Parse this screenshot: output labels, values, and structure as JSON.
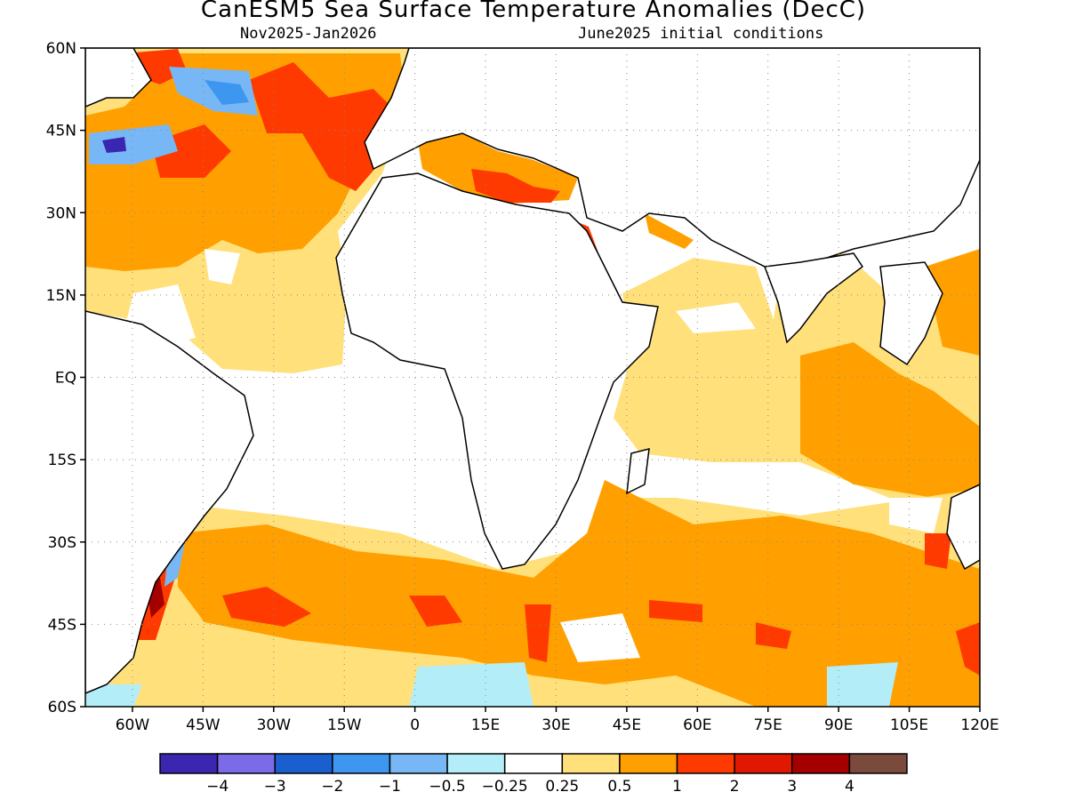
{
  "title": "CanESM5 Sea Surface Temperature Anomalies (DecC)",
  "subtitle_left": "Nov2025-Jan2026",
  "subtitle_right": "June2025 initial conditions",
  "map": {
    "extent": {
      "lon_min": -70,
      "lon_max": 120,
      "lat_min": -60,
      "lat_max": 60
    },
    "lat_ticks": [
      {
        "value": 60,
        "label": "60N"
      },
      {
        "value": 45,
        "label": "45N"
      },
      {
        "value": 30,
        "label": "30N"
      },
      {
        "value": 15,
        "label": "15N"
      },
      {
        "value": 0,
        "label": "EQ"
      },
      {
        "value": -15,
        "label": "15S"
      },
      {
        "value": -30,
        "label": "30S"
      },
      {
        "value": -45,
        "label": "45S"
      },
      {
        "value": -60,
        "label": "60S"
      }
    ],
    "lon_ticks": [
      {
        "value": -60,
        "label": "60W"
      },
      {
        "value": -45,
        "label": "45W"
      },
      {
        "value": -30,
        "label": "30W"
      },
      {
        "value": -15,
        "label": "15W"
      },
      {
        "value": 0,
        "label": "0"
      },
      {
        "value": 15,
        "label": "15E"
      },
      {
        "value": 30,
        "label": "30E"
      },
      {
        "value": 45,
        "label": "45E"
      },
      {
        "value": 60,
        "label": "60E"
      },
      {
        "value": 75,
        "label": "75E"
      },
      {
        "value": 90,
        "label": "90E"
      },
      {
        "value": 105,
        "label": "105E"
      },
      {
        "value": 120,
        "label": "120E"
      }
    ],
    "gridlines": "dotted"
  },
  "colorbar": {
    "colors": [
      "#3a26b0",
      "#7b6be8",
      "#1a5fd0",
      "#3d96f0",
      "#78b7f5",
      "#b3eef8",
      "#ffffff",
      "#ffe07a",
      "#ffa000",
      "#ff3a00",
      "#e01800",
      "#a50000",
      "#7a4a3c"
    ],
    "labels": [
      "−4",
      "−3",
      "−2",
      "−1",
      "−0.5",
      "−0.25",
      "0.25",
      "0.5",
      "1",
      "2",
      "3",
      "4"
    ]
  }
}
